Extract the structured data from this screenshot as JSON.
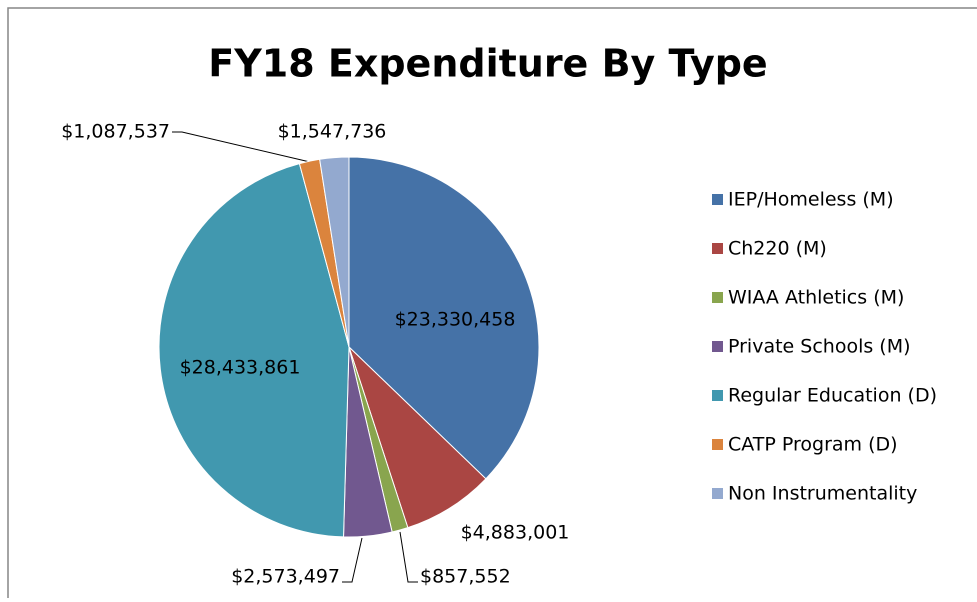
{
  "chart_data": {
    "type": "pie",
    "title": "FY18 Expenditure By Type",
    "categories": [
      "IEP/Homeless (M)",
      "Ch220 (M)",
      "WIAA Athletics (M)",
      "Private Schools (M)",
      "Regular Education (D)",
      "CATP Program (D)",
      "Non Instrumentality"
    ],
    "values": [
      23330458,
      4883001,
      857552,
      2573497,
      28433861,
      1087537,
      1547736
    ],
    "value_labels": [
      "$23,330,458",
      "$4,883,001",
      "$857,552",
      "$2,573,497",
      "$28,433,861",
      "$1,087,537",
      "$1,547,736"
    ],
    "colors": [
      "#4572a7",
      "#aa4643",
      "#89a54e",
      "#71588f",
      "#4198af",
      "#db843d",
      "#93a9cf"
    ],
    "legend": "right"
  }
}
